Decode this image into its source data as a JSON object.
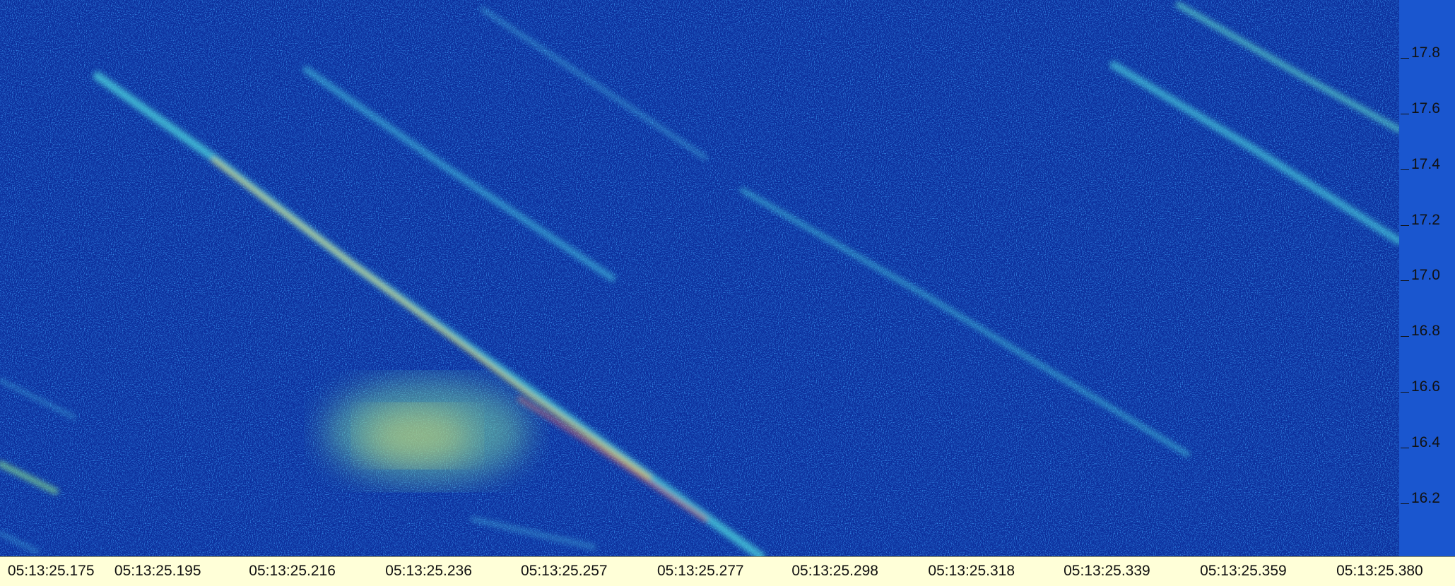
{
  "frequency_axis": {
    "labels": [
      "17.8",
      "17.6",
      "17.4",
      "17.2",
      "17.0",
      "16.8",
      "16.6",
      "16.4",
      "16.2"
    ]
  },
  "time_axis": {
    "labels": [
      "05:13:25.175",
      "05:13:25.195",
      "05:13:25.216",
      "05:13:25.236",
      "05:13:25.257",
      "05:13:25.277",
      "05:13:25.298",
      "05:13:25.318",
      "05:13:25.339",
      "05:13:25.359",
      "05:13:25.380"
    ]
  }
}
